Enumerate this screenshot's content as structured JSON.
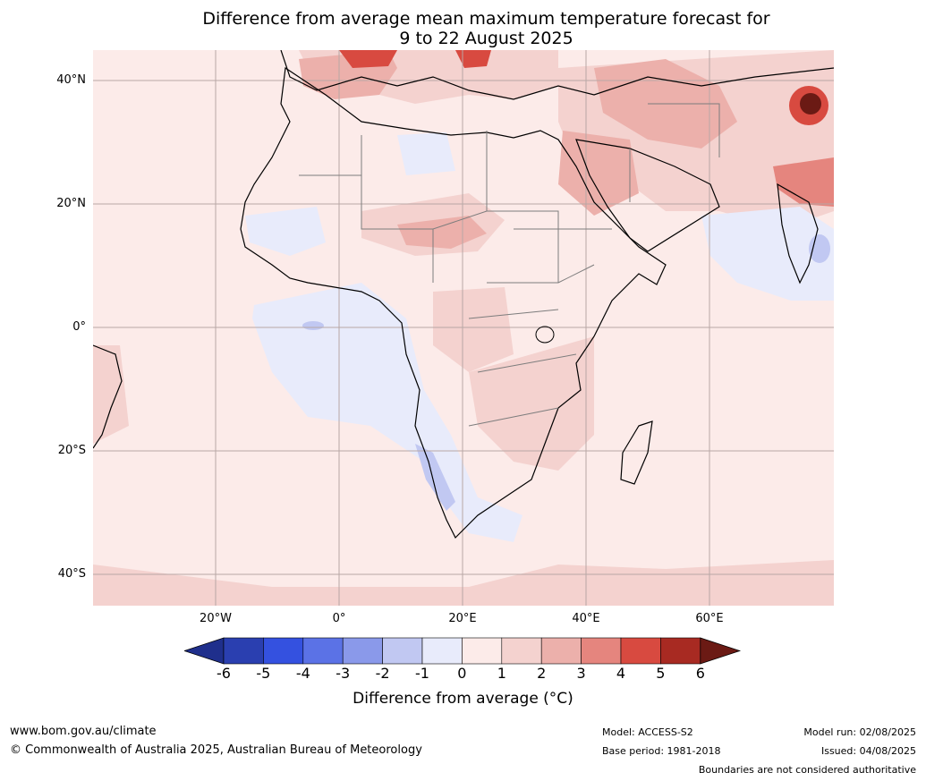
{
  "title": {
    "line1": "Difference from average mean maximum temperature forecast for",
    "line2": "9 to 22 August 2025"
  },
  "latitude_labels": [
    "40°N",
    "20°N",
    "0°",
    "20°S",
    "40°S"
  ],
  "longitude_labels": [
    "20°W",
    "0°",
    "20°E",
    "40°E",
    "60°E"
  ],
  "colorbar": {
    "ticks": [
      "-6",
      "-5",
      "-4",
      "-3",
      "-2",
      "-1",
      "0",
      "1",
      "2",
      "3",
      "4",
      "5",
      "6"
    ],
    "colors": [
      "#1f2f8c",
      "#2a3fb0",
      "#3451e0",
      "#5b72e6",
      "#8a99ea",
      "#c1c8f2",
      "#e8ebfb",
      "#fcebe9",
      "#f4d2cf",
      "#ecb0ab",
      "#e5857e",
      "#d84a40",
      "#a82a22",
      "#6b1a14"
    ],
    "label": "Difference from average (°C)"
  },
  "footer": {
    "website": "www.bom.gov.au/climate",
    "copyright": "© Commonwealth of Australia 2025, Australian Bureau of Meteorology",
    "model": "Model: ACCESS-S2",
    "base_period": "Base period: 1981-2018",
    "model_run": "Model run: 02/08/2025",
    "issued": "Issued: 04/08/2025",
    "disclaimer": "Boundaries are not considered authoritative"
  }
}
